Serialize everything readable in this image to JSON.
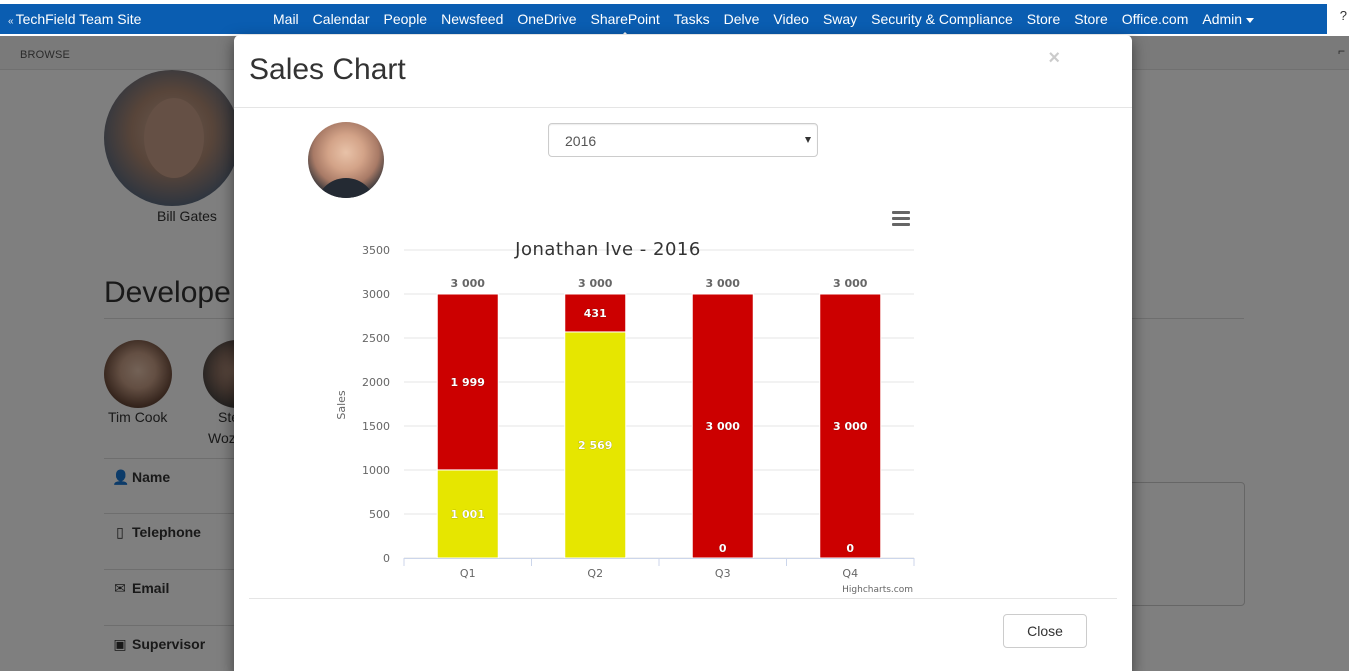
{
  "suitebar": {
    "site_title": "TechField Team Site",
    "nav": [
      "Mail",
      "Calendar",
      "People",
      "Newsfeed",
      "OneDrive",
      "SharePoint",
      "Tasks",
      "Delve",
      "Video",
      "Sway",
      "Security & Compliance",
      "Store",
      "Store",
      "Office.com"
    ],
    "admin_label": "Admin",
    "active_item": "SharePoint"
  },
  "ribbon": {
    "browse_label": "BROWSE"
  },
  "background_page": {
    "manager_name": "Bill Gates",
    "section_heading": "Develope",
    "people": [
      {
        "name": "Tim Cook"
      },
      {
        "name_line1": "Ste",
        "name_line2": "Woz"
      }
    ],
    "fields": {
      "name": "Name",
      "telephone": "Telephone",
      "email": "Email",
      "supervisor": "Supervisor"
    }
  },
  "modal": {
    "title": "Sales Chart",
    "close_symbol": "×",
    "year_select": {
      "value": "2016",
      "options": [
        "2016"
      ]
    },
    "close_button": "Close"
  },
  "chart_data": {
    "type": "bar",
    "stacked": true,
    "title": "Jonathan Ive - 2016",
    "ylabel": "Sales",
    "xlabel": "",
    "categories": [
      "Q1",
      "Q2",
      "Q3",
      "Q4"
    ],
    "ylim": [
      0,
      3500
    ],
    "yticks": [
      0,
      500,
      1000,
      1500,
      2000,
      2500,
      3000,
      3500
    ],
    "series": [
      {
        "values": [
          1999,
          431,
          3000,
          3000
        ],
        "color": "#cc0000"
      },
      {
        "values": [
          1001,
          2569,
          0,
          0
        ],
        "color": "#e6e600"
      }
    ],
    "totals": [
      3000,
      3000,
      3000,
      3000
    ],
    "number_format": "space-thousands",
    "credits": "Highcharts.com",
    "grid": true,
    "legend": false
  }
}
